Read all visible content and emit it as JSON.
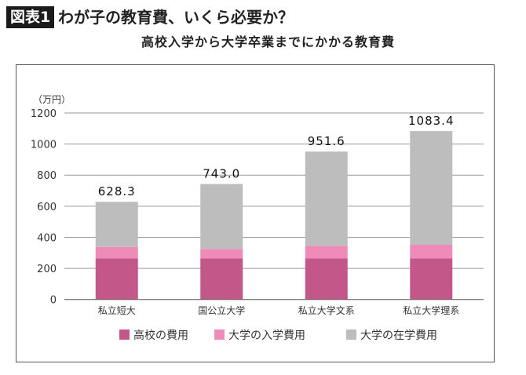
{
  "header": {
    "badge": "図表1",
    "title": "わが子の教育費、いくら必要か？"
  },
  "chart_data": {
    "type": "bar",
    "stacked": true,
    "title": "高校入学から大学卒業までにかかる教育費",
    "ylabel": "（万円）",
    "ylim": [
      0,
      1200
    ],
    "yticks": [
      0,
      200,
      400,
      600,
      800,
      1000,
      1200
    ],
    "grid": true,
    "legend_position": "bottom",
    "categories": [
      "私立短大",
      "国公立大学",
      "私立大学文系",
      "私立大学理系"
    ],
    "totals": [
      "628.3",
      "743.0",
      "951.6",
      "1083.4"
    ],
    "series": [
      {
        "name": "高校の費用",
        "color": "#c4578a",
        "values": [
          265,
          265,
          265,
          265
        ]
      },
      {
        "name": "大学の入学費用",
        "color": "#ee8bb8",
        "values": [
          73,
          60,
          80,
          87
        ]
      },
      {
        "name": "大学の在学費用",
        "color": "#bdbdbd",
        "values": [
          290.3,
          418,
          606.6,
          731.4
        ]
      }
    ]
  }
}
